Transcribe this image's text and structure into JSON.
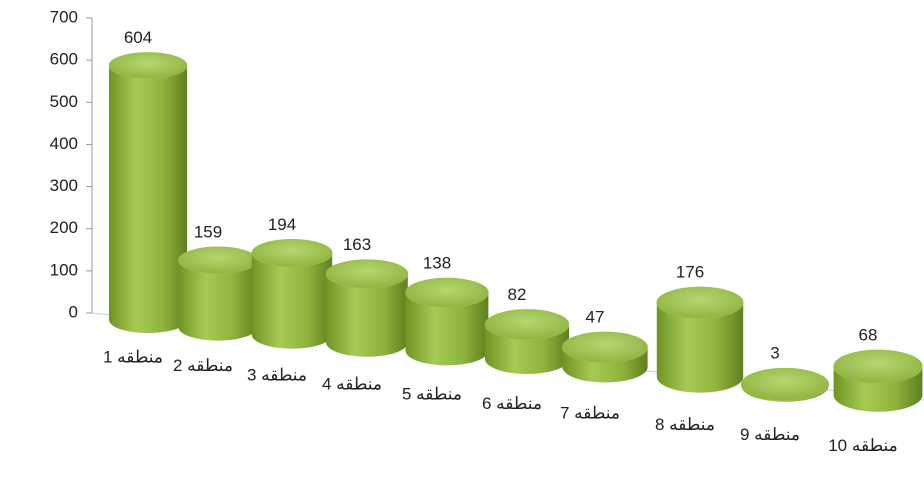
{
  "chart_data": {
    "type": "bar",
    "categories": [
      "منطقه 1",
      "منطقه 2",
      "منطقه 3",
      "منطقه 4",
      "منطقه 5",
      "منطقه 6",
      "منطقه 7",
      "منطقه 8",
      "منطقه 9",
      "منطقه 10"
    ],
    "values": [
      604,
      159,
      194,
      163,
      138,
      82,
      47,
      176,
      3,
      68
    ],
    "color": "#8db33c",
    "ylim": [
      0,
      700
    ],
    "yticks": [
      0,
      100,
      200,
      300,
      400,
      500,
      600,
      700
    ]
  }
}
